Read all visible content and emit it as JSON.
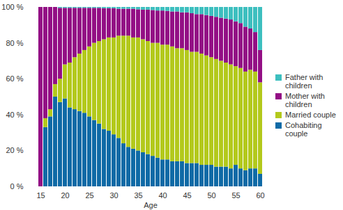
{
  "chart_data": {
    "type": "bar",
    "stacked": true,
    "x_label": "Age",
    "categories": [
      15,
      null,
      null,
      null,
      null,
      20,
      null,
      null,
      null,
      null,
      25,
      null,
      null,
      null,
      null,
      30,
      null,
      null,
      null,
      null,
      35,
      null,
      null,
      null,
      null,
      40,
      null,
      null,
      null,
      null,
      45,
      null,
      null,
      null,
      null,
      50,
      null,
      null,
      null,
      null,
      55,
      null,
      null,
      null,
      null,
      60
    ],
    "series": [
      {
        "name": "Cohabiting couple",
        "color": "#0f6aa6",
        "values": [
          0,
          33,
          39,
          50,
          47,
          49,
          44,
          43,
          42,
          41,
          39,
          37,
          35,
          32,
          31,
          29,
          27,
          24,
          22,
          21,
          20,
          19,
          18,
          17,
          16,
          15,
          15,
          14,
          14,
          14,
          13,
          13,
          13,
          12,
          12,
          12,
          11,
          11,
          11,
          10,
          12,
          10,
          9,
          10,
          10,
          7
        ]
      },
      {
        "name": "Married couple",
        "color": "#b3c91c",
        "values": [
          0,
          5,
          4,
          7,
          13,
          19,
          25,
          29,
          32,
          35,
          39,
          43,
          46,
          50,
          52,
          54,
          57,
          60,
          62,
          62,
          63,
          63,
          63,
          63,
          64,
          64,
          64,
          64,
          63,
          63,
          63,
          62,
          62,
          62,
          61,
          60,
          60,
          59,
          58,
          58,
          55,
          56,
          55,
          55,
          54,
          51
        ]
      },
      {
        "name": "Mother with children",
        "color": "#930f85",
        "values": [
          100,
          62,
          57,
          43,
          39.5,
          31.5,
          30.5,
          27.5,
          25.5,
          23.5,
          21.5,
          19.5,
          18.5,
          17.3,
          16.3,
          16.3,
          15,
          15,
          15,
          16,
          15.7,
          16.5,
          17.5,
          18.3,
          18,
          19,
          18.8,
          19.5,
          20.5,
          20,
          21,
          21.5,
          21,
          22,
          22.5,
          23,
          23.5,
          24,
          24.5,
          25,
          25,
          25,
          25,
          23,
          22,
          18
        ]
      },
      {
        "name": "Father with children",
        "color": "#3dbfbf",
        "values": [
          0,
          0,
          0,
          0,
          0.5,
          0.5,
          0.5,
          0.5,
          0.5,
          0.5,
          0.5,
          0.5,
          0.5,
          0.7,
          0.7,
          0.7,
          1,
          1,
          1,
          1,
          1.3,
          1.5,
          1.5,
          1.7,
          2,
          2,
          2.2,
          2.5,
          2.5,
          3,
          3,
          3.5,
          4,
          4,
          4.5,
          5,
          5.5,
          6,
          6.5,
          7,
          8,
          9,
          11,
          12,
          14,
          24
        ]
      }
    ],
    "ylim": [
      0,
      100
    ],
    "yticks": [
      {
        "value": 0,
        "label": "0 %"
      },
      {
        "value": 20,
        "label": "20 %"
      },
      {
        "value": 40,
        "label": "40 %"
      },
      {
        "value": 60,
        "label": "60 %"
      },
      {
        "value": 80,
        "label": "80 %"
      },
      {
        "value": 100,
        "label": "100 %"
      }
    ],
    "grid": false,
    "legend": "right"
  }
}
